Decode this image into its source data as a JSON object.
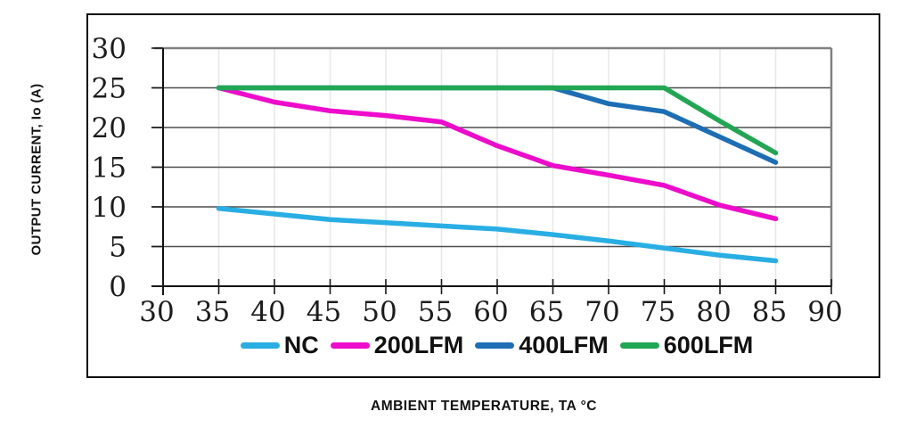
{
  "figure": {
    "background": "#ffffff",
    "frame_border_color": "#0a0a0a"
  },
  "chart_data": {
    "type": "line",
    "title": "",
    "xlabel": "AMBIENT TEMPERATURE, TA °C",
    "ylabel": "OUTPUT CURRENT, Io (A)",
    "xlim": [
      30,
      90
    ],
    "ylim": [
      0,
      30
    ],
    "x_ticks": [
      30,
      35,
      40,
      45,
      50,
      55,
      60,
      65,
      70,
      75,
      80,
      85,
      90
    ],
    "y_ticks": [
      0,
      5,
      10,
      15,
      20,
      25,
      30
    ],
    "grid": true,
    "legend_position": "bottom",
    "x": [
      35,
      40,
      45,
      50,
      55,
      60,
      65,
      70,
      75,
      80,
      85
    ],
    "series": [
      {
        "name": "NC",
        "color": "#29AEE4",
        "values": [
          9.8,
          9.1,
          8.4,
          8.0,
          7.6,
          7.2,
          6.5,
          5.7,
          4.8,
          3.9,
          3.2
        ]
      },
      {
        "name": "200LFM",
        "color": "#EE0BCB",
        "values": [
          25,
          23.2,
          22.1,
          21.5,
          20.7,
          17.7,
          15.2,
          14.0,
          12.7,
          10.2,
          8.5
        ]
      },
      {
        "name": "400LFM",
        "color": "#1C6EB5",
        "values": [
          25,
          25,
          25,
          25,
          25,
          25,
          25,
          23.0,
          22.0,
          18.8,
          15.6
        ]
      },
      {
        "name": "600LFM",
        "color": "#21A653",
        "values": [
          25,
          25,
          25,
          25,
          25,
          25,
          25,
          25,
          25,
          20.8,
          16.8
        ]
      }
    ]
  }
}
